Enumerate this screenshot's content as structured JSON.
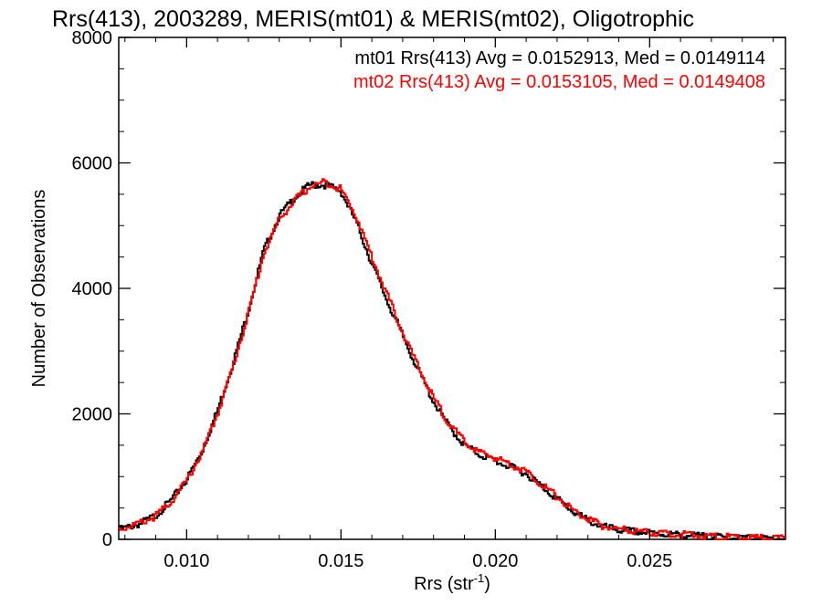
{
  "chart_data": {
    "type": "histogram-step",
    "title": "Rrs(413), 2003289, MERIS(mt01) & MERIS(mt02), Oligotrophic",
    "xlabel_main": "Rrs (str",
    "xlabel_sup": "-1",
    "xlabel_close": ")",
    "ylabel": "Number of Observations",
    "xlim": [
      0.0078,
      0.0294
    ],
    "ylim": [
      0,
      8000
    ],
    "x_ticks": [
      0.01,
      0.015,
      0.02,
      0.025
    ],
    "x_tick_labels": [
      "0.010",
      "0.015",
      "0.020",
      "0.025"
    ],
    "y_ticks": [
      0,
      2000,
      4000,
      6000,
      8000
    ],
    "y_tick_labels": [
      "0",
      "2000",
      "4000",
      "6000",
      "8000"
    ],
    "legend": [
      {
        "text": "mt01 Rrs(413) Avg = 0.0152913, Med = 0.0149114",
        "color": "#000000"
      },
      {
        "text": "mt02 Rrs(413) Avg = 0.0153105, Med = 0.0149408",
        "color": "#ff0000"
      }
    ],
    "series": [
      {
        "color": "#000000",
        "points": [
          [
            0.0078,
            150
          ],
          [
            0.0085,
            250
          ],
          [
            0.009,
            380
          ],
          [
            0.0095,
            620
          ],
          [
            0.01,
            950
          ],
          [
            0.0105,
            1400
          ],
          [
            0.011,
            2050
          ],
          [
            0.0115,
            2800
          ],
          [
            0.012,
            3650
          ],
          [
            0.0125,
            4600
          ],
          [
            0.013,
            5150
          ],
          [
            0.0135,
            5450
          ],
          [
            0.014,
            5650
          ],
          [
            0.0145,
            5650
          ],
          [
            0.015,
            5550
          ],
          [
            0.0155,
            5050
          ],
          [
            0.016,
            4400
          ],
          [
            0.0165,
            3800
          ],
          [
            0.017,
            3250
          ],
          [
            0.0175,
            2700
          ],
          [
            0.018,
            2200
          ],
          [
            0.0185,
            1800
          ],
          [
            0.019,
            1500
          ],
          [
            0.0195,
            1350
          ],
          [
            0.02,
            1250
          ],
          [
            0.0205,
            1150
          ],
          [
            0.021,
            1050
          ],
          [
            0.0215,
            850
          ],
          [
            0.022,
            650
          ],
          [
            0.0225,
            450
          ],
          [
            0.023,
            300
          ],
          [
            0.0235,
            200
          ],
          [
            0.024,
            150
          ],
          [
            0.025,
            100
          ],
          [
            0.026,
            70
          ],
          [
            0.027,
            40
          ],
          [
            0.028,
            20
          ],
          [
            0.029,
            10
          ],
          [
            0.0294,
            5
          ]
        ]
      },
      {
        "color": "#ff0000",
        "points": [
          [
            0.0078,
            160
          ],
          [
            0.0085,
            260
          ],
          [
            0.009,
            370
          ],
          [
            0.0095,
            600
          ],
          [
            0.01,
            930
          ],
          [
            0.0105,
            1380
          ],
          [
            0.011,
            2000
          ],
          [
            0.0115,
            2750
          ],
          [
            0.012,
            3600
          ],
          [
            0.0125,
            4550
          ],
          [
            0.013,
            5100
          ],
          [
            0.0135,
            5400
          ],
          [
            0.014,
            5620
          ],
          [
            0.0145,
            5700
          ],
          [
            0.015,
            5580
          ],
          [
            0.0155,
            5150
          ],
          [
            0.016,
            4500
          ],
          [
            0.0165,
            3900
          ],
          [
            0.017,
            3300
          ],
          [
            0.0175,
            2750
          ],
          [
            0.018,
            2250
          ],
          [
            0.0185,
            1850
          ],
          [
            0.019,
            1550
          ],
          [
            0.0195,
            1380
          ],
          [
            0.02,
            1300
          ],
          [
            0.0205,
            1200
          ],
          [
            0.021,
            1080
          ],
          [
            0.0215,
            880
          ],
          [
            0.022,
            680
          ],
          [
            0.0225,
            470
          ],
          [
            0.023,
            320
          ],
          [
            0.0235,
            210
          ],
          [
            0.024,
            160
          ],
          [
            0.025,
            110
          ],
          [
            0.026,
            75
          ],
          [
            0.027,
            45
          ],
          [
            0.028,
            25
          ],
          [
            0.029,
            12
          ],
          [
            0.0294,
            6
          ]
        ]
      }
    ]
  }
}
